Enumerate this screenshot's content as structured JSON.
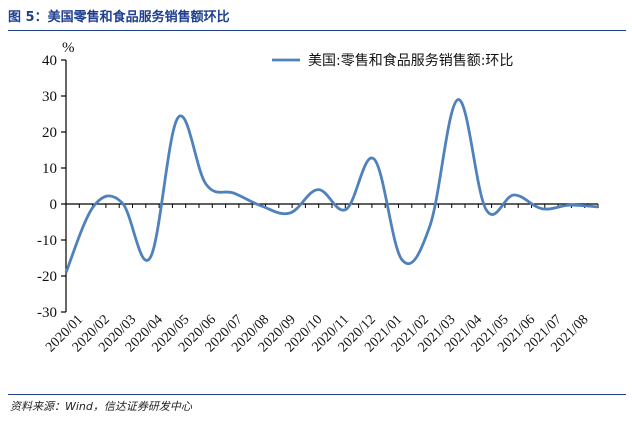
{
  "figure": {
    "title": "图 5：美国零售和食品服务销售额环比",
    "source": "资料来源：Wind，信达证券研发中心"
  },
  "chart_data": {
    "type": "line",
    "title": "",
    "xlabel": "",
    "ylabel": "%",
    "ylim": [
      -30,
      40
    ],
    "yticks": [
      40,
      30,
      20,
      10,
      0,
      -10,
      -20,
      -30
    ],
    "legend": "top-right",
    "grid": false,
    "x": [
      "2020/01",
      "2020/02",
      "2020/03",
      "2020/04",
      "2020/05",
      "2020/06",
      "2020/07",
      "2020/08",
      "2020/09",
      "2020/10",
      "2020/11",
      "2020/12",
      "2021/01",
      "2021/02",
      "2021/03",
      "2021/04",
      "2021/05",
      "2021/06",
      "2021/07",
      "2021/08"
    ],
    "x_tick_labels": [
      "2020/01",
      "2020/02",
      "2020/03",
      "2020/04",
      "2020/05",
      "2020/06",
      "2020/07",
      "2020/08",
      "2020/09",
      "2020/10",
      "2020/11",
      "2020/12",
      "2021/01",
      "2021/02",
      "2021/03",
      "2021/04",
      "2021/05",
      "2021/06",
      "2021/07",
      "2021/08"
    ],
    "x_samples_per_tick": 2,
    "series": [
      {
        "name": "美国:零售和食品服务销售额:环比",
        "color": "#4f81bd",
        "values": [
          -19.0,
          -0.5,
          0.4,
          -15.0,
          24.0,
          5.5,
          3.0,
          -0.6,
          -2.5,
          4.0,
          -1.5,
          12.5,
          -15.5,
          -6.0,
          29.0,
          -1.5,
          2.5,
          -1.3,
          -0.3,
          -0.8
        ]
      }
    ]
  }
}
